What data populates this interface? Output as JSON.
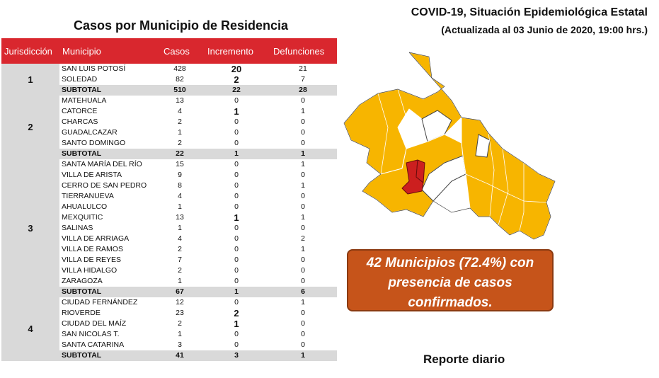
{
  "header": {
    "title": "COVID-19, Situación Epidemiológica Estatal",
    "subtitle": "(Actualizada al 03 Junio de 2020, 19:00 hrs.)"
  },
  "table": {
    "title": "Casos por Municipio  de Residencia",
    "columns": {
      "jurisdiccion": "Jurisdicción",
      "municipio": "Municipio",
      "casos": "Casos",
      "incremento": "Incremento",
      "defunciones": "Defunciones"
    },
    "groups": [
      {
        "id": "1",
        "rows": [
          {
            "municipio": "SAN LUIS POTOSÍ",
            "casos": "428",
            "incremento": "20",
            "defunciones": "21"
          },
          {
            "municipio": "SOLEDAD",
            "casos": "82",
            "incremento": "2",
            "defunciones": "7"
          }
        ],
        "subtotal": {
          "label": "SUBTOTAL",
          "casos": "510",
          "incremento": "22",
          "defunciones": "28"
        }
      },
      {
        "id": "2",
        "rows": [
          {
            "municipio": "MATEHUALA",
            "casos": "13",
            "incremento": "0",
            "defunciones": "0"
          },
          {
            "municipio": "CATORCE",
            "casos": "4",
            "incremento": "1",
            "defunciones": "1"
          },
          {
            "municipio": "CHARCAS",
            "casos": "2",
            "incremento": "0",
            "defunciones": "0"
          },
          {
            "municipio": "GUADALCAZAR",
            "casos": "1",
            "incremento": "0",
            "defunciones": "0"
          },
          {
            "municipio": "SANTO DOMINGO",
            "casos": "2",
            "incremento": "0",
            "defunciones": "0"
          }
        ],
        "subtotal": {
          "label": "SUBTOTAL",
          "casos": "22",
          "incremento": "1",
          "defunciones": "1"
        }
      },
      {
        "id": "3",
        "rows": [
          {
            "municipio": "SANTA MARÍA DEL RÍO",
            "casos": "15",
            "incremento": "0",
            "defunciones": "1"
          },
          {
            "municipio": "VILLA DE ARISTA",
            "casos": "9",
            "incremento": "0",
            "defunciones": "0"
          },
          {
            "municipio": "CERRO DE SAN PEDRO",
            "casos": "8",
            "incremento": "0",
            "defunciones": "1"
          },
          {
            "municipio": "TIERRANUEVA",
            "casos": "4",
            "incremento": "0",
            "defunciones": "0"
          },
          {
            "municipio": "AHUALULCO",
            "casos": "1",
            "incremento": "0",
            "defunciones": "0"
          },
          {
            "municipio": "MEXQUITIC",
            "casos": "13",
            "incremento": "1",
            "defunciones": "1"
          },
          {
            "municipio": "SALINAS",
            "casos": "1",
            "incremento": "0",
            "defunciones": "0"
          },
          {
            "municipio": "VILLA DE ARRIAGA",
            "casos": "4",
            "incremento": "0",
            "defunciones": "2"
          },
          {
            "municipio": "VILLA DE RAMOS",
            "casos": "2",
            "incremento": "0",
            "defunciones": "1"
          },
          {
            "municipio": "VILLA DE REYES",
            "casos": "7",
            "incremento": "0",
            "defunciones": "0"
          },
          {
            "municipio": "VILLA HIDALGO",
            "casos": "2",
            "incremento": "0",
            "defunciones": "0"
          },
          {
            "municipio": "ZARAGOZA",
            "casos": "1",
            "incremento": "0",
            "defunciones": "0"
          }
        ],
        "subtotal": {
          "label": "SUBTOTAL",
          "casos": "67",
          "incremento": "1",
          "defunciones": "6"
        }
      },
      {
        "id": "4",
        "rows": [
          {
            "municipio": "CIUDAD FERNÁNDEZ",
            "casos": "12",
            "incremento": "0",
            "defunciones": "1"
          },
          {
            "municipio": "RIOVERDE",
            "casos": "23",
            "incremento": "2",
            "defunciones": "0"
          },
          {
            "municipio": "CIUDAD DEL MAÍZ",
            "casos": "2",
            "incremento": "1",
            "defunciones": "0"
          },
          {
            "municipio": "SAN NICOLAS T.",
            "casos": "1",
            "incremento": "0",
            "defunciones": "0"
          },
          {
            "municipio": "SANTA CATARINA",
            "casos": "3",
            "incremento": "0",
            "defunciones": "0"
          }
        ],
        "subtotal": {
          "label": "SUBTOTAL",
          "casos": "41",
          "incremento": "3",
          "defunciones": "1"
        }
      }
    ]
  },
  "colors": {
    "header_red": "#d9272e",
    "subtotal_gray": "#d9d9d9",
    "map_cases_fill": "#f7b500",
    "map_capital_fill": "#cc1f1f",
    "callout_fill": "#c6541a"
  },
  "callout": {
    "line1": "42 Municipios (72.4%) con",
    "line2": "presencia de casos",
    "line3": "confirmados."
  },
  "footer": {
    "label": "Reporte diario"
  }
}
